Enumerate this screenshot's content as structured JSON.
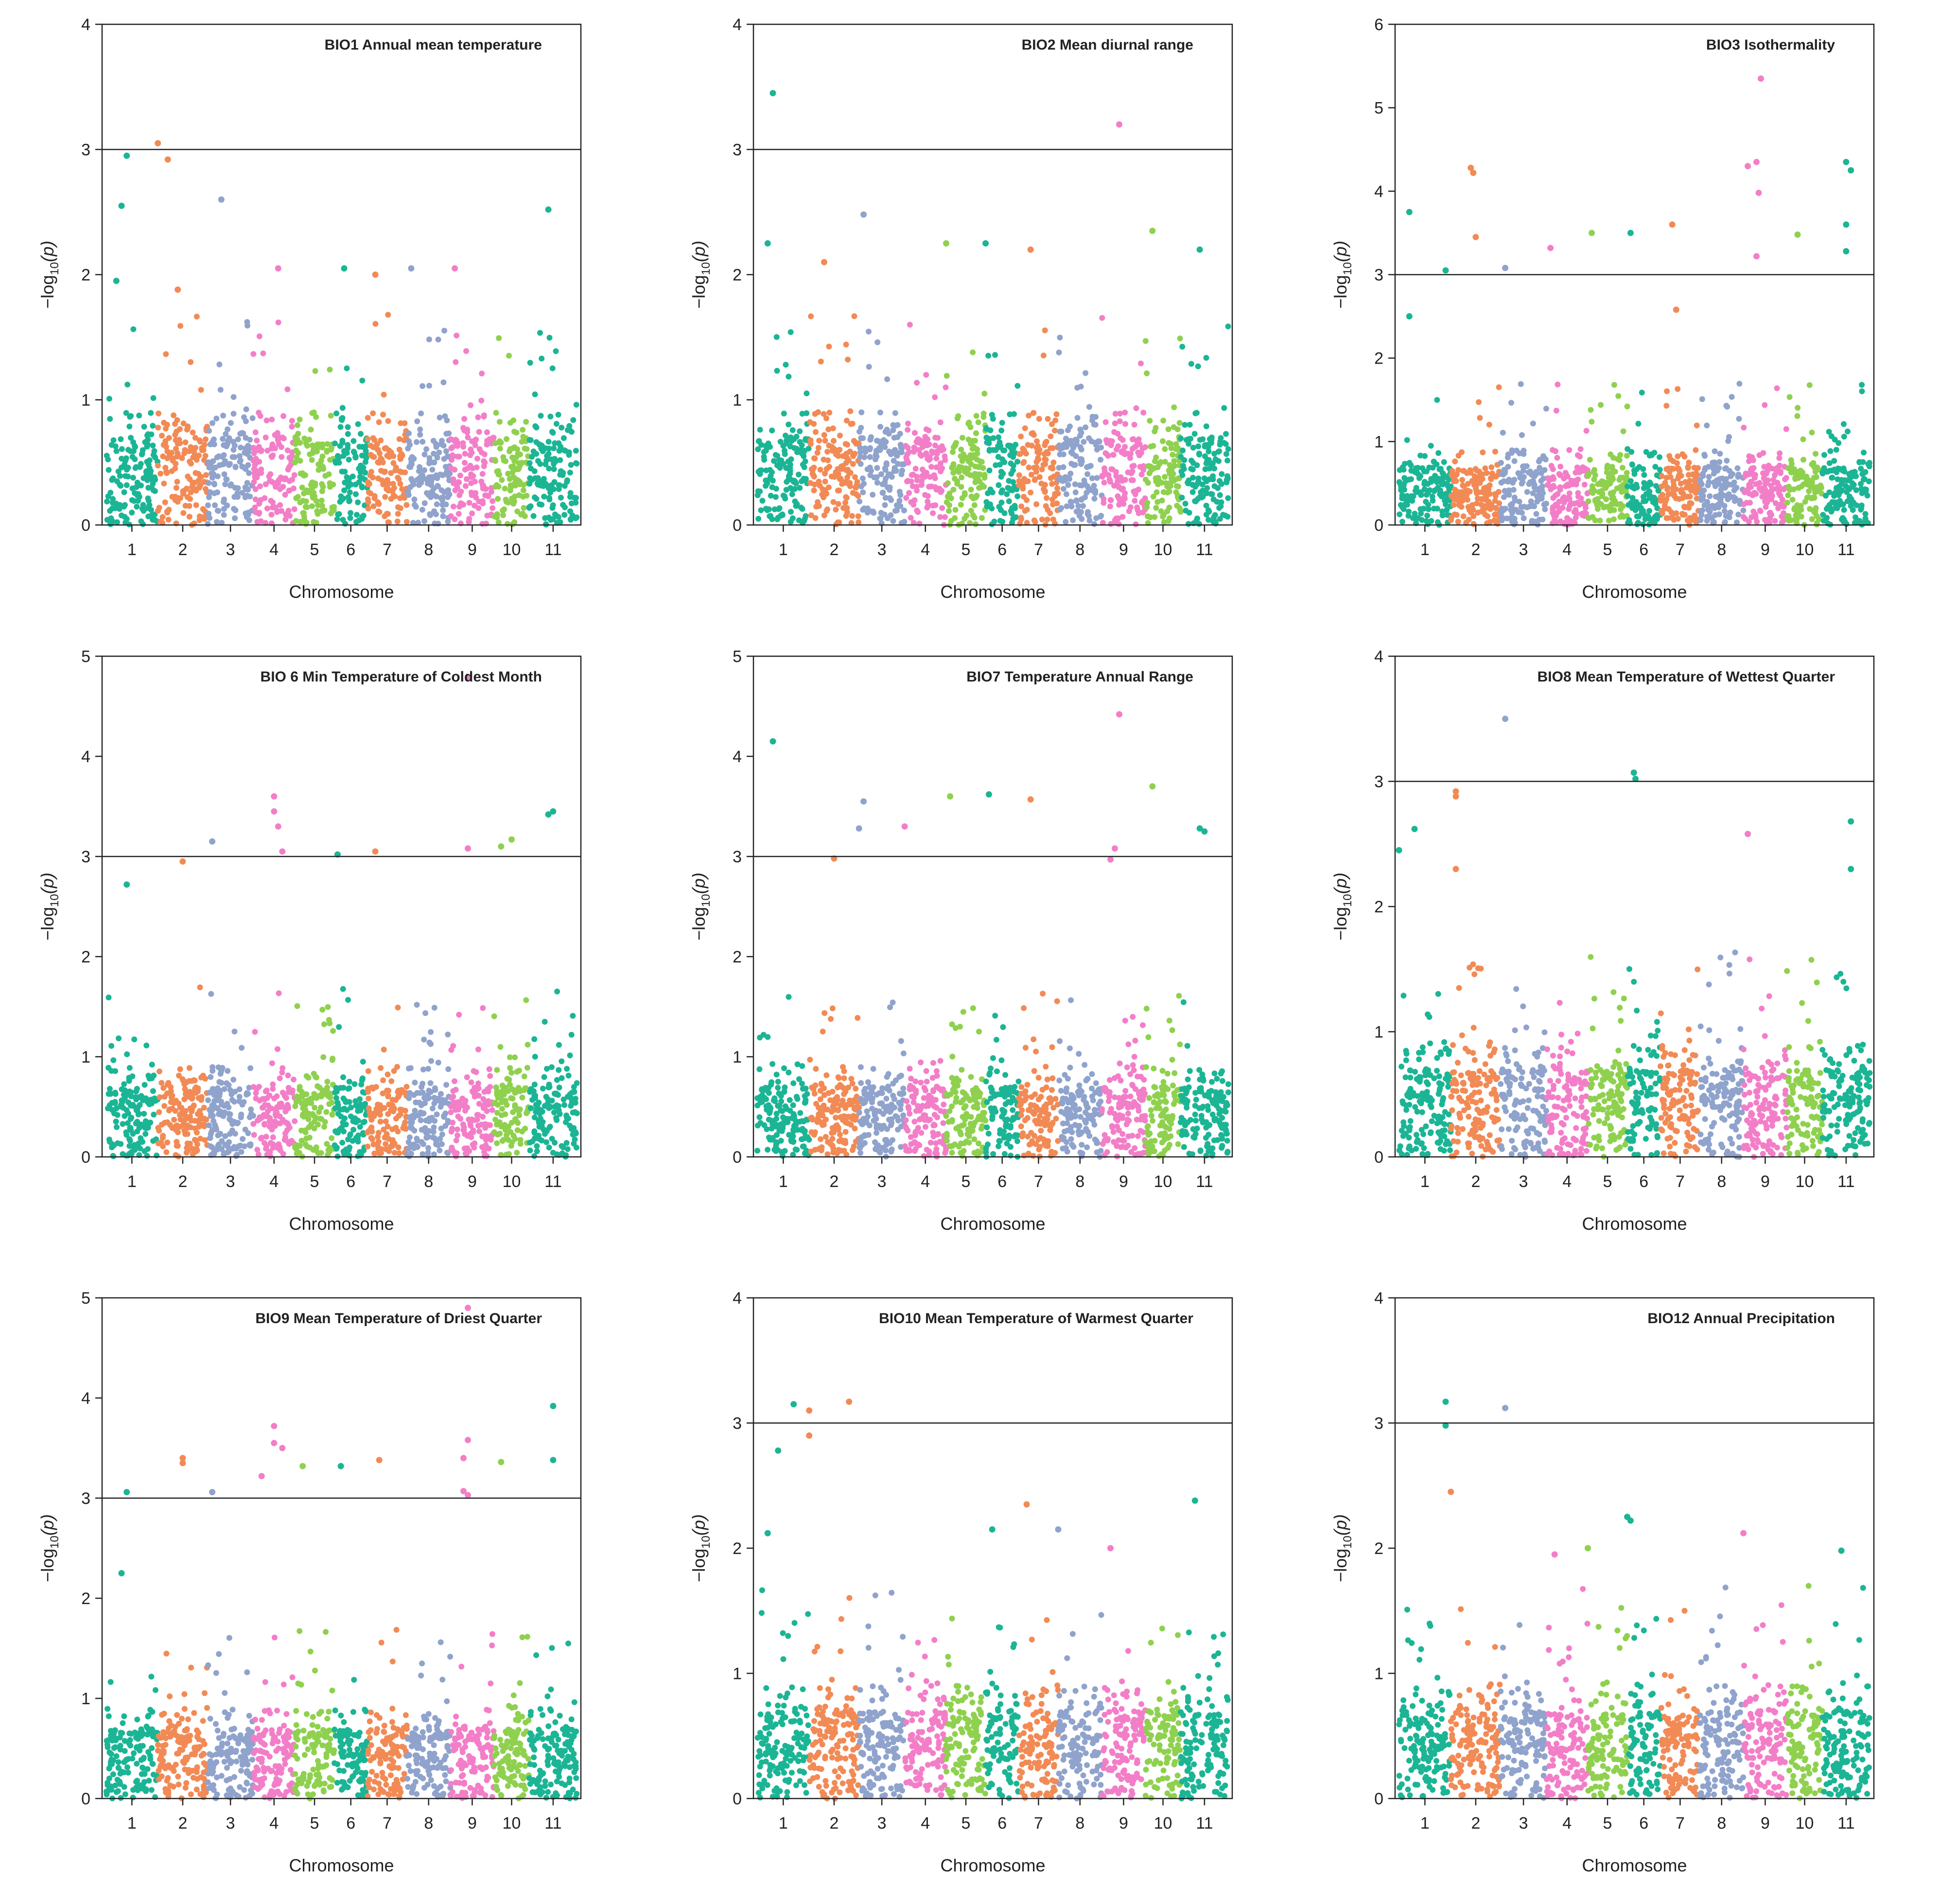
{
  "figure": {
    "colors": [
      "#1bb595",
      "#f28a55",
      "#8fa3cc",
      "#f37ec8",
      "#8fd14f"
    ],
    "chromosomes": [
      "1",
      "2",
      "3",
      "4",
      "5",
      "6",
      "7",
      "8",
      "9",
      "10",
      "11"
    ],
    "xlabel": "Chromosome",
    "ylabel_main": "−log",
    "ylabel_sub": "10",
    "ylabel_tail": "(p)"
  },
  "chart_data": [
    {
      "type": "scatter",
      "title": "BIO1 Annual mean temperature",
      "ymax": 4,
      "yticks": [
        0,
        1,
        2,
        3,
        4
      ],
      "threshold": 3,
      "peaks": [
        [
          1.4,
          2.95
        ],
        [
          1.3,
          2.55
        ],
        [
          2.0,
          3.05
        ],
        [
          2.2,
          2.92
        ],
        [
          3.3,
          2.6
        ],
        [
          4.6,
          2.05
        ],
        [
          6.3,
          2.05
        ],
        [
          7.2,
          2.0
        ],
        [
          8.1,
          2.05
        ],
        [
          9.1,
          2.05
        ],
        [
          11.4,
          2.52
        ],
        [
          1.2,
          1.95
        ],
        [
          2.4,
          1.88
        ]
      ]
    },
    {
      "type": "scatter",
      "title": "BIO2 Mean diurnal range",
      "ymax": 4,
      "yticks": [
        0,
        1,
        2,
        3,
        4
      ],
      "threshold": 3,
      "peaks": [
        [
          1.3,
          3.45
        ],
        [
          9.4,
          3.2
        ],
        [
          1.2,
          2.25
        ],
        [
          3.1,
          2.48
        ],
        [
          5.0,
          2.25
        ],
        [
          6.0,
          2.25
        ],
        [
          7.3,
          2.2
        ],
        [
          10.2,
          2.35
        ],
        [
          11.4,
          2.2
        ],
        [
          2.3,
          2.1
        ]
      ]
    },
    {
      "type": "scatter",
      "title": "BIO3 Isothermality",
      "ymax": 6,
      "yticks": [
        0,
        1,
        2,
        3,
        4,
        5,
        6
      ],
      "threshold": 3,
      "peaks": [
        [
          9.4,
          5.35
        ],
        [
          2.4,
          4.28
        ],
        [
          2.45,
          4.22
        ],
        [
          1.2,
          3.75
        ],
        [
          0.9,
          3.05
        ],
        [
          2.5,
          3.45
        ],
        [
          3.1,
          3.08
        ],
        [
          4.1,
          3.32
        ],
        [
          5.1,
          3.5
        ],
        [
          6.1,
          3.5
        ],
        [
          7.3,
          3.6
        ],
        [
          9.1,
          4.3
        ],
        [
          9.3,
          4.35
        ],
        [
          9.35,
          3.98
        ],
        [
          9.3,
          3.22
        ],
        [
          10.3,
          3.48
        ],
        [
          11.5,
          4.35
        ],
        [
          11.6,
          4.25
        ],
        [
          11.5,
          3.6
        ],
        [
          11.5,
          3.28
        ],
        [
          1.2,
          2.5
        ],
        [
          7.4,
          2.58
        ]
      ]
    },
    {
      "type": "scatter",
      "title": "BIO 6 Min Temperature of Coldest Month",
      "ymax": 5,
      "yticks": [
        0,
        1,
        2,
        3,
        4,
        5
      ],
      "threshold": 3,
      "peaks": [
        [
          9.4,
          4.78
        ],
        [
          3.1,
          3.15
        ],
        [
          2.5,
          2.95
        ],
        [
          4.5,
          3.6
        ],
        [
          4.5,
          3.45
        ],
        [
          4.6,
          3.3
        ],
        [
          4.7,
          3.05
        ],
        [
          6.1,
          3.02
        ],
        [
          7.2,
          3.05
        ],
        [
          9.4,
          3.08
        ],
        [
          10.2,
          3.1
        ],
        [
          10.5,
          3.17
        ],
        [
          11.5,
          3.45
        ],
        [
          11.4,
          3.42
        ],
        [
          1.4,
          2.72
        ]
      ]
    },
    {
      "type": "scatter",
      "title": "BIO7 Temperature Annual Range",
      "ymax": 5,
      "yticks": [
        0,
        1,
        2,
        3,
        4,
        5
      ],
      "threshold": 3,
      "peaks": [
        [
          1.3,
          4.15
        ],
        [
          3.1,
          3.55
        ],
        [
          3.0,
          3.28
        ],
        [
          4.0,
          3.3
        ],
        [
          5.1,
          3.6
        ],
        [
          6.1,
          3.62
        ],
        [
          7.3,
          3.57
        ],
        [
          9.4,
          4.42
        ],
        [
          10.2,
          3.7
        ],
        [
          11.4,
          3.28
        ],
        [
          11.5,
          3.25
        ],
        [
          9.3,
          3.08
        ],
        [
          9.2,
          2.97
        ],
        [
          2.5,
          2.98
        ]
      ]
    },
    {
      "type": "scatter",
      "title": "BIO8 Mean Temperature of Wettest Quarter",
      "ymax": 4,
      "yticks": [
        0,
        1,
        2,
        3,
        4
      ],
      "threshold": 3,
      "peaks": [
        [
          3.1,
          3.5
        ],
        [
          6.2,
          3.07
        ],
        [
          6.25,
          3.02
        ],
        [
          2.1,
          2.92
        ],
        [
          2.1,
          2.88
        ],
        [
          1.3,
          2.62
        ],
        [
          9.1,
          2.58
        ],
        [
          11.6,
          2.68
        ],
        [
          11.6,
          2.3
        ],
        [
          1.0,
          2.45
        ],
        [
          2.1,
          2.3
        ]
      ]
    },
    {
      "type": "scatter",
      "title": "BIO9 Mean Temperature of Driest Quarter",
      "ymax": 5,
      "yticks": [
        0,
        1,
        2,
        3,
        4,
        5
      ],
      "threshold": 3,
      "peaks": [
        [
          9.4,
          4.9
        ],
        [
          11.5,
          3.92
        ],
        [
          11.5,
          3.38
        ],
        [
          4.5,
          3.72
        ],
        [
          4.5,
          3.55
        ],
        [
          4.7,
          3.5
        ],
        [
          2.5,
          3.35
        ],
        [
          2.5,
          3.4
        ],
        [
          4.2,
          3.22
        ],
        [
          5.2,
          3.32
        ],
        [
          6.2,
          3.32
        ],
        [
          7.3,
          3.38
        ],
        [
          9.4,
          3.58
        ],
        [
          9.3,
          3.4
        ],
        [
          9.3,
          3.07
        ],
        [
          9.4,
          3.03
        ],
        [
          10.2,
          3.36
        ],
        [
          3.1,
          3.06
        ],
        [
          1.4,
          3.06
        ],
        [
          1.3,
          2.25
        ]
      ]
    },
    {
      "type": "scatter",
      "title": "BIO10 Mean Temperature of Warmest Quarter",
      "ymax": 4,
      "yticks": [
        0,
        1,
        2,
        3,
        4
      ],
      "threshold": 3,
      "peaks": [
        [
          1.7,
          3.15
        ],
        [
          2.0,
          3.1
        ],
        [
          2.8,
          3.17
        ],
        [
          1.4,
          2.78
        ],
        [
          2.0,
          2.9
        ],
        [
          6.2,
          2.15
        ],
        [
          7.2,
          2.35
        ],
        [
          8.0,
          2.15
        ],
        [
          9.2,
          2.0
        ],
        [
          11.3,
          2.38
        ],
        [
          1.2,
          2.12
        ]
      ]
    },
    {
      "type": "scatter",
      "title": "BIO12 Annual Precipitation",
      "ymax": 4,
      "yticks": [
        0,
        1,
        2,
        3,
        4
      ],
      "threshold": 3,
      "peaks": [
        [
          1.9,
          3.17
        ],
        [
          1.9,
          2.98
        ],
        [
          3.1,
          3.12
        ],
        [
          2.0,
          2.45
        ],
        [
          6.0,
          2.25
        ],
        [
          6.1,
          2.22
        ],
        [
          9.0,
          2.12
        ],
        [
          5.0,
          2.0
        ],
        [
          11.4,
          1.98
        ],
        [
          4.2,
          1.95
        ]
      ]
    }
  ]
}
